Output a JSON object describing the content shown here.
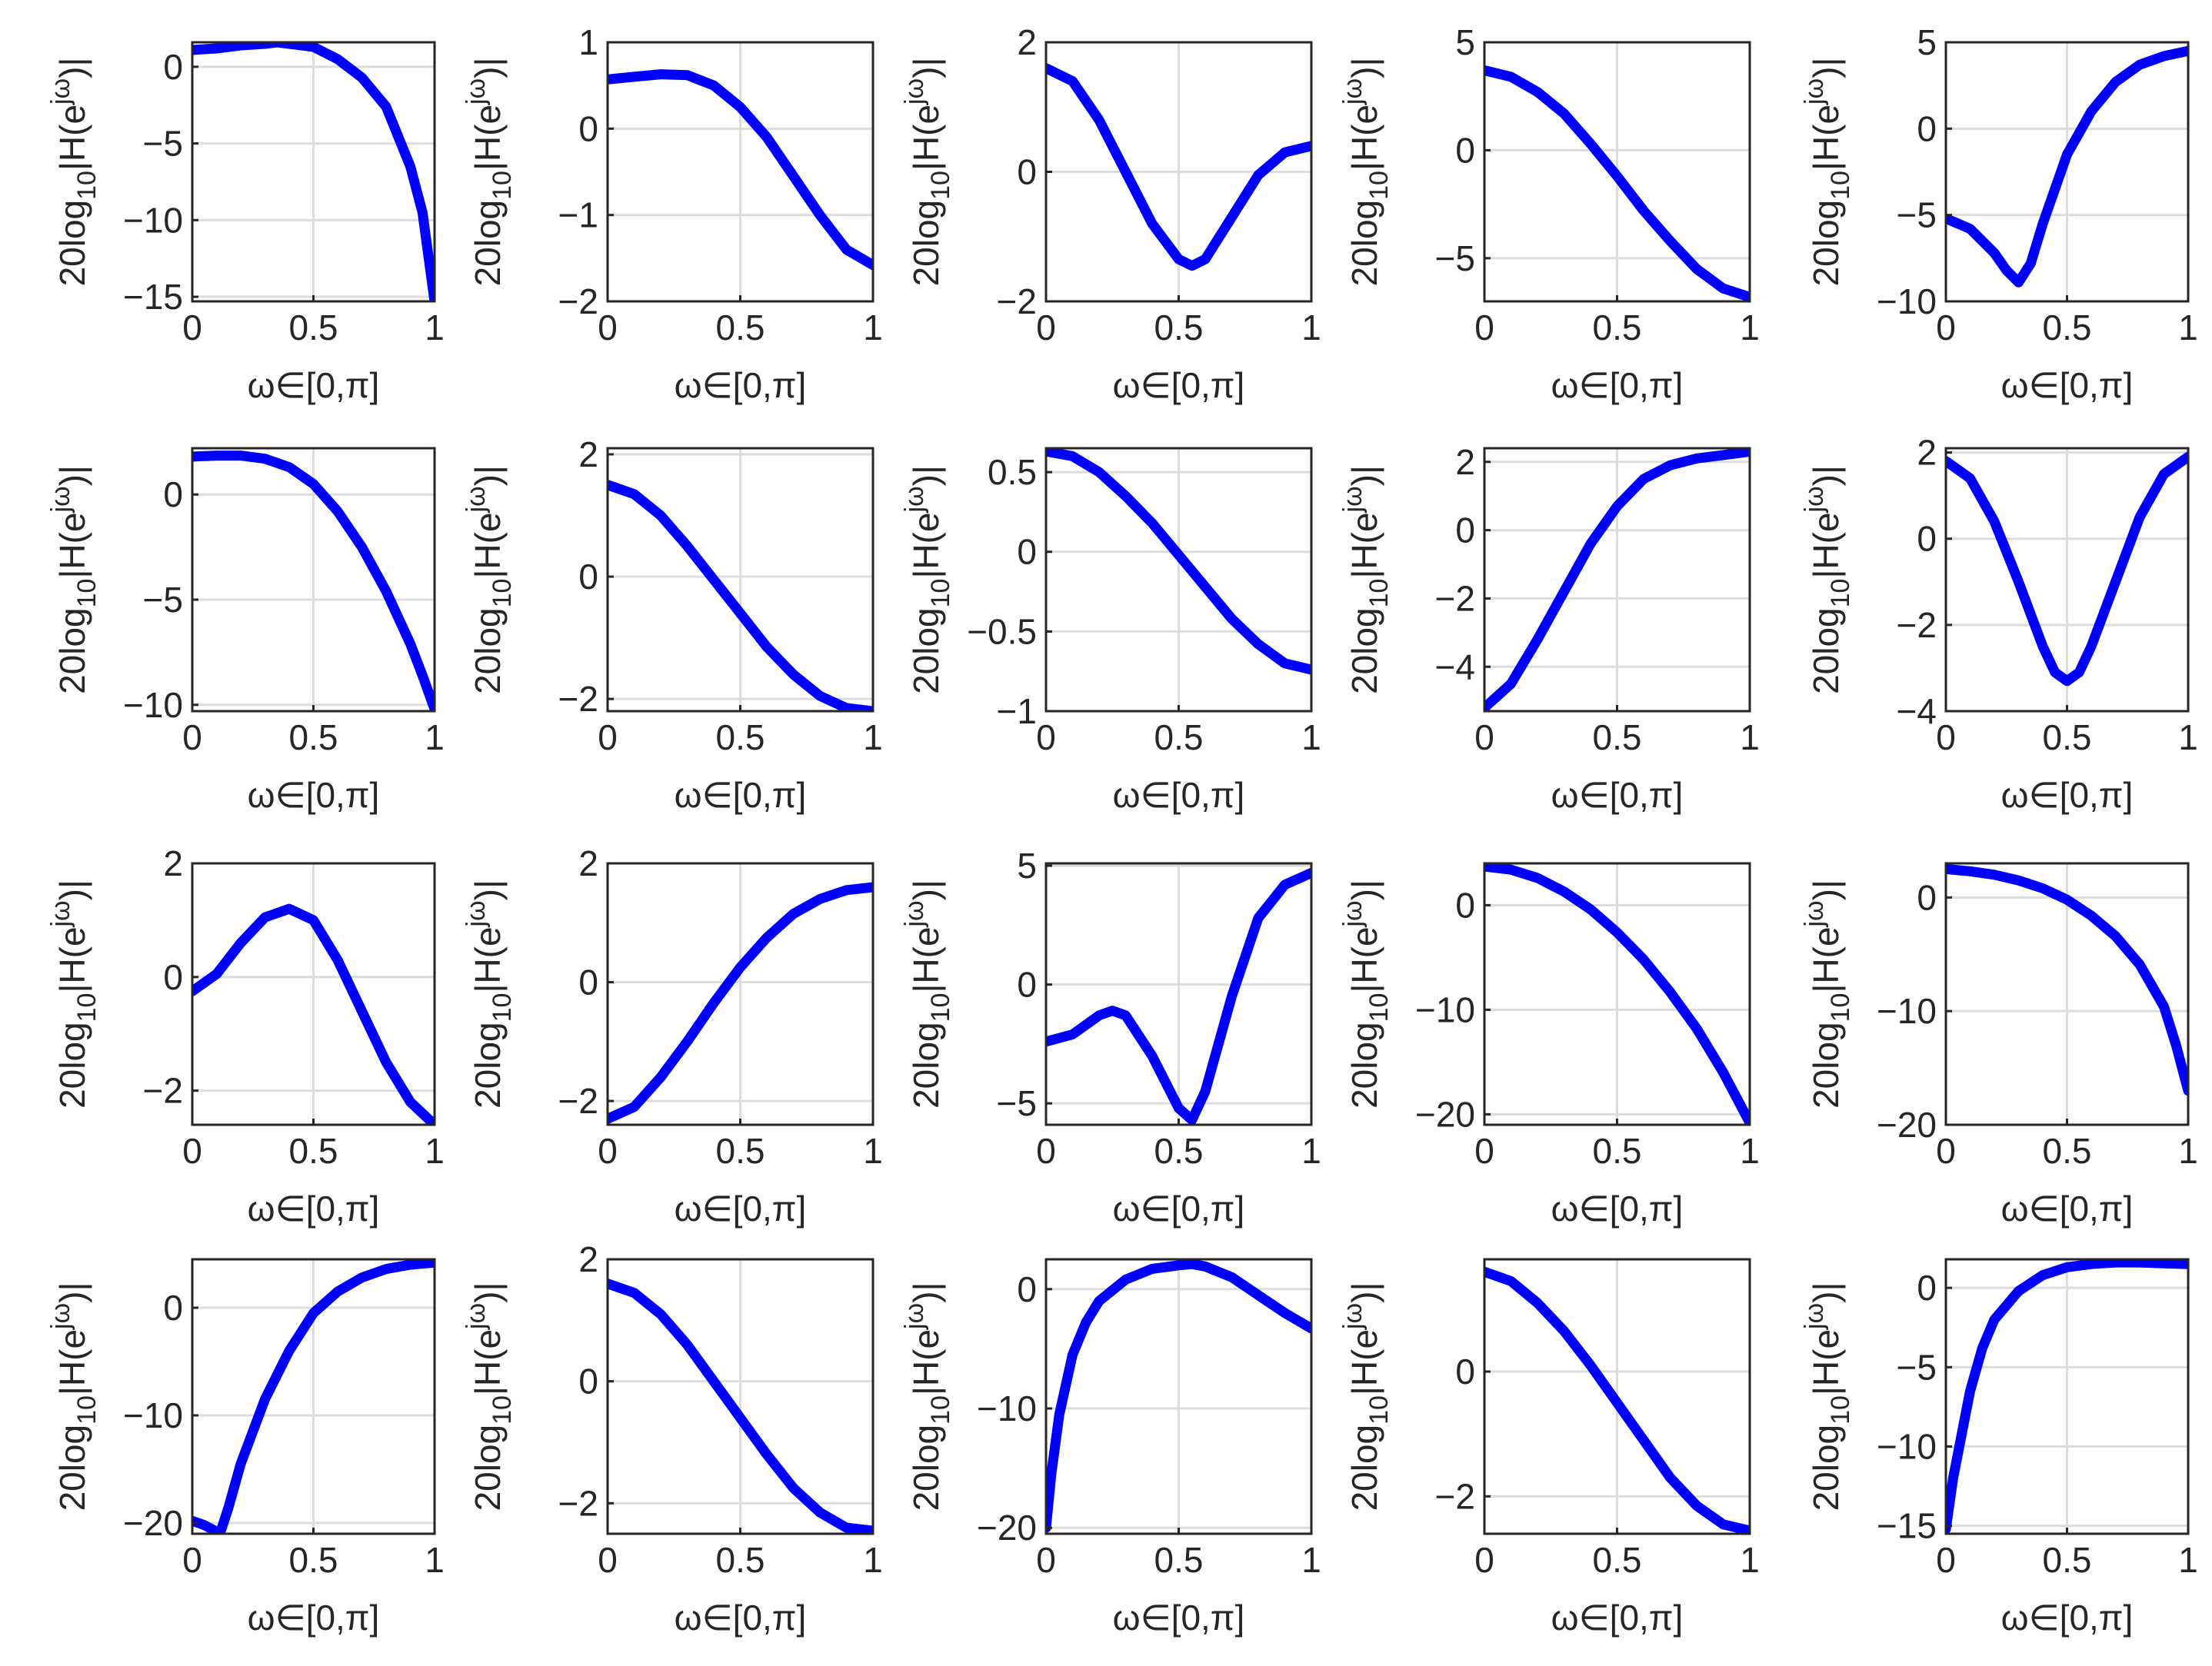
{
  "figure": {
    "rows": 4,
    "cols": 5,
    "curve_color": "#0000ff",
    "axis_color": "#262626",
    "grid_color": "#dcdcdc"
  },
  "chart_data": [
    {
      "type": "line",
      "title": "",
      "xlabel": "ω∈[0,π]",
      "ylabel": "20log10|H(e^jω)|",
      "xlim": [
        0,
        1
      ],
      "ylim": [
        -15.3,
        1.6
      ],
      "xticks": [
        0,
        0.5,
        1
      ],
      "yticks": [
        0,
        -5,
        -10,
        -15
      ],
      "grid": true,
      "series": [
        {
          "name": "",
          "x": [
            0,
            0.1,
            0.2,
            0.3,
            0.35,
            0.4,
            0.5,
            0.6,
            0.7,
            0.8,
            0.9,
            0.95,
            1.0
          ],
          "y": [
            1.1,
            1.2,
            1.4,
            1.5,
            1.6,
            1.5,
            1.3,
            0.5,
            -0.7,
            -2.6,
            -6.5,
            -9.5,
            -15.3
          ]
        }
      ]
    },
    {
      "type": "line",
      "title": "",
      "xlabel": "ω∈[0,π]",
      "ylabel": "20log10|H(e^jω)|",
      "xlim": [
        0,
        1
      ],
      "ylim": [
        -2,
        1
      ],
      "xticks": [
        0,
        0.5,
        1
      ],
      "yticks": [
        1,
        0,
        -1,
        -2
      ],
      "grid": true,
      "series": [
        {
          "name": "",
          "x": [
            0,
            0.1,
            0.2,
            0.3,
            0.4,
            0.5,
            0.6,
            0.7,
            0.8,
            0.9,
            1.0
          ],
          "y": [
            0.57,
            0.6,
            0.63,
            0.62,
            0.5,
            0.25,
            -0.1,
            -0.55,
            -1.0,
            -1.4,
            -1.58
          ]
        }
      ]
    },
    {
      "type": "line",
      "title": "",
      "xlabel": "ω∈[0,π]",
      "ylabel": "20log10|H(e^jω)|",
      "xlim": [
        0,
        1
      ],
      "ylim": [
        -2,
        2
      ],
      "xticks": [
        0,
        0.5,
        1
      ],
      "yticks": [
        2,
        0,
        -2
      ],
      "grid": true,
      "series": [
        {
          "name": "",
          "x": [
            0,
            0.1,
            0.2,
            0.3,
            0.4,
            0.5,
            0.55,
            0.6,
            0.7,
            0.8,
            0.9,
            1.0
          ],
          "y": [
            1.6,
            1.4,
            0.8,
            0.0,
            -0.8,
            -1.35,
            -1.45,
            -1.35,
            -0.7,
            -0.05,
            0.3,
            0.4
          ]
        }
      ]
    },
    {
      "type": "line",
      "title": "",
      "xlabel": "ω∈[0,π]",
      "ylabel": "20log10|H(e^jω)|",
      "xlim": [
        0,
        1
      ],
      "ylim": [
        -7,
        5
      ],
      "xticks": [
        0,
        0.5,
        1
      ],
      "yticks": [
        5,
        0,
        -5
      ],
      "grid": true,
      "series": [
        {
          "name": "",
          "x": [
            0,
            0.1,
            0.2,
            0.3,
            0.4,
            0.5,
            0.6,
            0.7,
            0.8,
            0.9,
            1.0
          ],
          "y": [
            3.7,
            3.4,
            2.7,
            1.7,
            0.3,
            -1.2,
            -2.8,
            -4.2,
            -5.5,
            -6.4,
            -6.8
          ]
        }
      ]
    },
    {
      "type": "line",
      "title": "",
      "xlabel": "ω∈[0,π]",
      "ylabel": "20log10|H(e^jω)|",
      "xlim": [
        0,
        1
      ],
      "ylim": [
        -10,
        5
      ],
      "xticks": [
        0,
        0.5,
        1
      ],
      "yticks": [
        5,
        0,
        -5,
        -10
      ],
      "grid": true,
      "series": [
        {
          "name": "",
          "x": [
            0,
            0.1,
            0.2,
            0.25,
            0.3,
            0.35,
            0.4,
            0.5,
            0.6,
            0.7,
            0.8,
            0.9,
            1.0
          ],
          "y": [
            -5.2,
            -5.8,
            -7.2,
            -8.2,
            -8.9,
            -7.8,
            -5.5,
            -1.5,
            1.0,
            2.7,
            3.7,
            4.2,
            4.5
          ]
        }
      ]
    },
    {
      "type": "line",
      "title": "",
      "xlabel": "ω∈[0,π]",
      "ylabel": "20log10|H(e^jω)|",
      "xlim": [
        0,
        1
      ],
      "ylim": [
        -10.3,
        2.2
      ],
      "xticks": [
        0,
        0.5,
        1
      ],
      "yticks": [
        0,
        -5,
        -10
      ],
      "grid": true,
      "series": [
        {
          "name": "",
          "x": [
            0,
            0.1,
            0.2,
            0.3,
            0.4,
            0.5,
            0.6,
            0.7,
            0.8,
            0.9,
            0.95,
            1.0
          ],
          "y": [
            1.8,
            1.85,
            1.85,
            1.7,
            1.3,
            0.5,
            -0.8,
            -2.5,
            -4.6,
            -7.1,
            -8.6,
            -10.2
          ]
        }
      ]
    },
    {
      "type": "line",
      "title": "",
      "xlabel": "ω∈[0,π]",
      "ylabel": "20log10|H(e^jω)|",
      "xlim": [
        0,
        1
      ],
      "ylim": [
        -2.2,
        2.1
      ],
      "xticks": [
        0,
        0.5,
        1
      ],
      "yticks": [
        2,
        0,
        -2
      ],
      "grid": true,
      "series": [
        {
          "name": "",
          "x": [
            0,
            0.1,
            0.2,
            0.3,
            0.4,
            0.5,
            0.6,
            0.7,
            0.8,
            0.9,
            1.0
          ],
          "y": [
            1.5,
            1.35,
            1.0,
            0.5,
            -0.05,
            -0.6,
            -1.15,
            -1.6,
            -1.95,
            -2.15,
            -2.2
          ]
        }
      ]
    },
    {
      "type": "line",
      "title": "",
      "xlabel": "ω∈[0,π]",
      "ylabel": "20log10|H(e^jω)|",
      "xlim": [
        0,
        1
      ],
      "ylim": [
        -1,
        0.65
      ],
      "xticks": [
        0,
        0.5,
        1
      ],
      "yticks": [
        0.5,
        0,
        -0.5,
        -1
      ],
      "grid": true,
      "series": [
        {
          "name": "",
          "x": [
            0,
            0.1,
            0.2,
            0.3,
            0.4,
            0.5,
            0.6,
            0.7,
            0.8,
            0.9,
            1.0
          ],
          "y": [
            0.63,
            0.6,
            0.5,
            0.35,
            0.18,
            -0.02,
            -0.22,
            -0.42,
            -0.58,
            -0.7,
            -0.74
          ]
        }
      ]
    },
    {
      "type": "line",
      "title": "",
      "xlabel": "ω∈[0,π]",
      "ylabel": "20log10|H(e^jω)|",
      "xlim": [
        0,
        1
      ],
      "ylim": [
        -5.3,
        2.4
      ],
      "xticks": [
        0,
        0.5,
        1
      ],
      "yticks": [
        2,
        0,
        -2,
        -4
      ],
      "grid": true,
      "series": [
        {
          "name": "",
          "x": [
            0,
            0.1,
            0.2,
            0.3,
            0.4,
            0.5,
            0.6,
            0.7,
            0.8,
            0.9,
            1.0
          ],
          "y": [
            -5.2,
            -4.5,
            -3.2,
            -1.8,
            -0.4,
            0.7,
            1.5,
            1.9,
            2.1,
            2.2,
            2.3
          ]
        }
      ]
    },
    {
      "type": "line",
      "title": "",
      "xlabel": "ω∈[0,π]",
      "ylabel": "20log10|H(e^jω)|",
      "xlim": [
        0,
        1
      ],
      "ylim": [
        -4,
        2.1
      ],
      "xticks": [
        0,
        0.5,
        1
      ],
      "yticks": [
        2,
        0,
        -2,
        -4
      ],
      "grid": true,
      "series": [
        {
          "name": "",
          "x": [
            0,
            0.1,
            0.2,
            0.3,
            0.4,
            0.45,
            0.5,
            0.55,
            0.6,
            0.7,
            0.8,
            0.9,
            1.0
          ],
          "y": [
            1.8,
            1.4,
            0.4,
            -1.0,
            -2.5,
            -3.1,
            -3.3,
            -3.1,
            -2.5,
            -1.0,
            0.5,
            1.5,
            1.9
          ]
        }
      ]
    },
    {
      "type": "line",
      "title": "",
      "xlabel": "ω∈[0,π]",
      "ylabel": "20log10|H(e^jω)|",
      "xlim": [
        0,
        1
      ],
      "ylim": [
        -2.6,
        2
      ],
      "xticks": [
        0,
        0.5,
        1
      ],
      "yticks": [
        2,
        0,
        -2
      ],
      "grid": true,
      "series": [
        {
          "name": "",
          "x": [
            0,
            0.1,
            0.2,
            0.3,
            0.4,
            0.5,
            0.6,
            0.7,
            0.8,
            0.9,
            1.0
          ],
          "y": [
            -0.25,
            0.05,
            0.6,
            1.05,
            1.2,
            1.0,
            0.3,
            -0.6,
            -1.5,
            -2.2,
            -2.6
          ]
        }
      ]
    },
    {
      "type": "line",
      "title": "",
      "xlabel": "ω∈[0,π]",
      "ylabel": "20log10|H(e^jω)|",
      "xlim": [
        0,
        1
      ],
      "ylim": [
        -2.4,
        2
      ],
      "xticks": [
        0,
        0.5,
        1
      ],
      "yticks": [
        2,
        0,
        -2
      ],
      "grid": true,
      "series": [
        {
          "name": "",
          "x": [
            0,
            0.1,
            0.2,
            0.3,
            0.4,
            0.5,
            0.6,
            0.7,
            0.8,
            0.9,
            1.0
          ],
          "y": [
            -2.3,
            -2.1,
            -1.6,
            -1.0,
            -0.35,
            0.25,
            0.75,
            1.15,
            1.4,
            1.55,
            1.6
          ]
        }
      ]
    },
    {
      "type": "line",
      "title": "",
      "xlabel": "ω∈[0,π]",
      "ylabel": "20log10|H(e^jω)|",
      "xlim": [
        0,
        1
      ],
      "ylim": [
        -5.9,
        5.1
      ],
      "xticks": [
        0,
        0.5,
        1
      ],
      "yticks": [
        5,
        0,
        -5
      ],
      "grid": true,
      "series": [
        {
          "name": "",
          "x": [
            0,
            0.1,
            0.2,
            0.25,
            0.3,
            0.4,
            0.5,
            0.55,
            0.6,
            0.7,
            0.8,
            0.9,
            1.0
          ],
          "y": [
            -2.4,
            -2.1,
            -1.3,
            -1.1,
            -1.3,
            -3.0,
            -5.2,
            -5.7,
            -4.5,
            -0.5,
            2.8,
            4.2,
            4.7
          ]
        }
      ]
    },
    {
      "type": "line",
      "title": "",
      "xlabel": "ω∈[0,π]",
      "ylabel": "20log10|H(e^jω)|",
      "xlim": [
        0,
        1
      ],
      "ylim": [
        -21,
        4
      ],
      "xticks": [
        0,
        0.5,
        1
      ],
      "yticks": [
        0,
        -10,
        -20
      ],
      "grid": true,
      "series": [
        {
          "name": "",
          "x": [
            0,
            0.1,
            0.2,
            0.3,
            0.4,
            0.5,
            0.6,
            0.7,
            0.8,
            0.9,
            1.0
          ],
          "y": [
            3.7,
            3.4,
            2.6,
            1.3,
            -0.4,
            -2.6,
            -5.2,
            -8.3,
            -11.8,
            -16.0,
            -20.8
          ]
        }
      ]
    },
    {
      "type": "line",
      "title": "",
      "xlabel": "ω∈[0,π]",
      "ylabel": "20log10|H(e^jω)|",
      "xlim": [
        0,
        1
      ],
      "ylim": [
        -20,
        3
      ],
      "xticks": [
        0,
        0.5,
        1
      ],
      "yticks": [
        0,
        -10,
        -20
      ],
      "grid": true,
      "series": [
        {
          "name": "",
          "x": [
            0,
            0.1,
            0.2,
            0.3,
            0.4,
            0.5,
            0.6,
            0.7,
            0.8,
            0.9,
            0.95,
            1.0
          ],
          "y": [
            2.5,
            2.3,
            2.0,
            1.5,
            0.8,
            -0.2,
            -1.6,
            -3.4,
            -5.9,
            -9.6,
            -13.0,
            -17.0
          ]
        }
      ]
    },
    {
      "type": "line",
      "title": "",
      "xlabel": "ω∈[0,π]",
      "ylabel": "20log10|H(e^jω)|",
      "xlim": [
        0,
        1
      ],
      "ylim": [
        -21,
        4.5
      ],
      "xticks": [
        0,
        0.5,
        1
      ],
      "yticks": [
        0,
        -10,
        -20
      ],
      "grid": true,
      "series": [
        {
          "name": "",
          "x": [
            0,
            0.05,
            0.1,
            0.12,
            0.15,
            0.2,
            0.3,
            0.4,
            0.5,
            0.6,
            0.7,
            0.8,
            0.9,
            1.0
          ],
          "y": [
            -19.8,
            -20.2,
            -20.8,
            -20.6,
            -18.5,
            -14.5,
            -8.5,
            -4.0,
            -0.5,
            1.5,
            2.8,
            3.6,
            4.0,
            4.2
          ]
        }
      ]
    },
    {
      "type": "line",
      "title": "",
      "xlabel": "ω∈[0,π]",
      "ylabel": "20log10|H(e^jω)|",
      "xlim": [
        0,
        1
      ],
      "ylim": [
        -2.5,
        2
      ],
      "xticks": [
        0,
        0.5,
        1
      ],
      "yticks": [
        2,
        0,
        -2
      ],
      "grid": true,
      "series": [
        {
          "name": "",
          "x": [
            0,
            0.1,
            0.2,
            0.3,
            0.4,
            0.5,
            0.6,
            0.7,
            0.8,
            0.9,
            1.0
          ],
          "y": [
            1.6,
            1.45,
            1.1,
            0.6,
            0.0,
            -0.6,
            -1.2,
            -1.75,
            -2.15,
            -2.4,
            -2.45
          ]
        }
      ]
    },
    {
      "type": "line",
      "title": "",
      "xlabel": "ω∈[0,π]",
      "ylabel": "20log10|H(e^jω)|",
      "xlim": [
        0,
        1
      ],
      "ylim": [
        -20.5,
        2.5
      ],
      "xticks": [
        0,
        0.5,
        1
      ],
      "yticks": [
        0,
        -10,
        -20
      ],
      "grid": true,
      "series": [
        {
          "name": "",
          "x": [
            0,
            0.02,
            0.05,
            0.1,
            0.15,
            0.2,
            0.3,
            0.4,
            0.5,
            0.55,
            0.6,
            0.7,
            0.8,
            0.9,
            1.0
          ],
          "y": [
            -20,
            -15.5,
            -10.5,
            -5.5,
            -2.8,
            -1.0,
            0.8,
            1.7,
            2.0,
            2.1,
            1.9,
            1.0,
            -0.5,
            -2.0,
            -3.3
          ]
        }
      ]
    },
    {
      "type": "line",
      "title": "",
      "xlabel": "ω∈[0,π]",
      "ylabel": "20log10|H(e^jω)|",
      "xlim": [
        0,
        1
      ],
      "ylim": [
        -2.6,
        1.8
      ],
      "xticks": [
        0,
        0.5,
        1
      ],
      "yticks": [
        0,
        -2
      ],
      "grid": true,
      "series": [
        {
          "name": "",
          "x": [
            0,
            0.1,
            0.2,
            0.3,
            0.4,
            0.5,
            0.6,
            0.7,
            0.8,
            0.9,
            1.0
          ],
          "y": [
            1.6,
            1.45,
            1.1,
            0.65,
            0.1,
            -0.5,
            -1.1,
            -1.7,
            -2.15,
            -2.45,
            -2.55
          ]
        }
      ]
    },
    {
      "type": "line",
      "title": "",
      "xlabel": "ω∈[0,π]",
      "ylabel": "20log10|H(e^jω)|",
      "xlim": [
        0,
        1
      ],
      "ylim": [
        -15.5,
        1.8
      ],
      "xticks": [
        0,
        0.5,
        1
      ],
      "yticks": [
        0,
        -5,
        -10,
        -15
      ],
      "grid": true,
      "series": [
        {
          "name": "",
          "x": [
            0,
            0.03,
            0.1,
            0.15,
            0.2,
            0.3,
            0.4,
            0.5,
            0.6,
            0.7,
            0.8,
            0.9,
            1.0
          ],
          "y": [
            -15.2,
            -12.0,
            -6.5,
            -3.8,
            -2.0,
            -0.2,
            0.8,
            1.3,
            1.5,
            1.6,
            1.6,
            1.55,
            1.5
          ]
        }
      ]
    }
  ]
}
